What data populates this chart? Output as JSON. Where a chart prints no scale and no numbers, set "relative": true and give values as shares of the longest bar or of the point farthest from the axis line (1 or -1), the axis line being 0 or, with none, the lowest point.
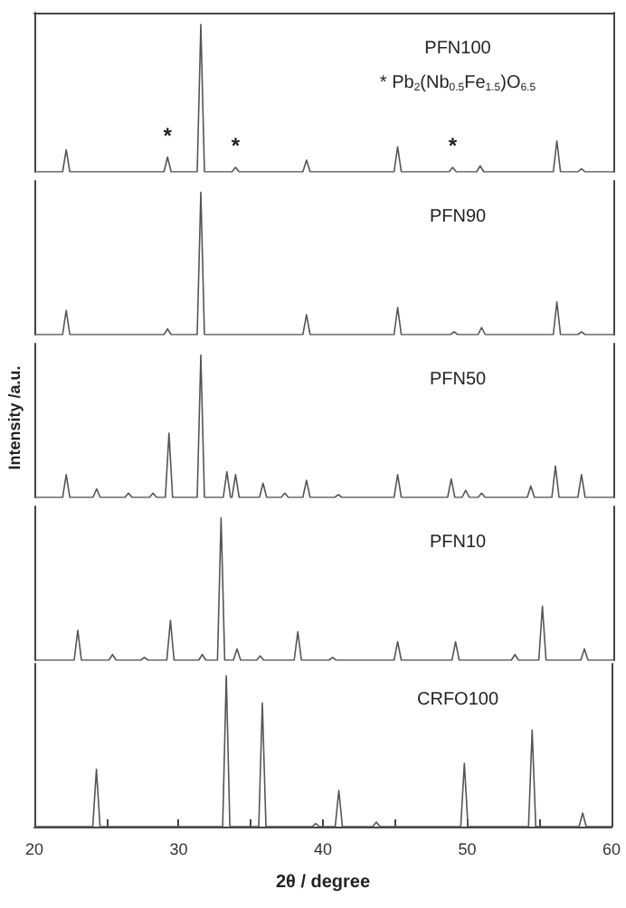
{
  "chart_data": [
    {
      "type": "line",
      "relative": true,
      "xlim": [
        20,
        60
      ],
      "tick_labels": false,
      "annotations": [
        "* Pb$_{2}$(Nb$_{0.5}$Fe$_{1.5}$)O$_{6.5}$",
        {
          "text": "*",
          "x": 29.2,
          "y": 0.1
        },
        {
          "text": "*",
          "x": 33.9,
          "y": 0.03
        },
        {
          "text": "*",
          "x": 48.9,
          "y": 0.03
        }
      ],
      "series": [
        {
          "name": "PFN100",
          "color": "#555555",
          "x": [
            20,
            21.95,
            22.2,
            22.45,
            28.95,
            29.2,
            29.45,
            31.25,
            31.5,
            31.75,
            33.65,
            33.9,
            34.15,
            38.55,
            38.8,
            39.05,
            44.85,
            45.1,
            45.35,
            48.65,
            48.9,
            49.15,
            50.55,
            50.8,
            51.05,
            55.85,
            56.1,
            56.35,
            57.55,
            57.8,
            58.05,
            60
          ],
          "values": [
            0,
            0,
            0.15,
            0,
            0,
            0.1,
            0,
            0,
            1,
            0,
            0,
            0.03,
            0,
            0,
            0.08,
            0,
            0,
            0.17,
            0,
            0,
            0.03,
            0,
            0,
            0.04,
            0,
            0,
            0.21,
            0,
            0,
            0.02,
            0,
            0
          ]
        }
      ]
    },
    {
      "type": "line",
      "relative": true,
      "xlim": [
        20,
        60
      ],
      "tick_labels": false,
      "series": [
        {
          "name": "PFN90",
          "color": "#555555",
          "x": [
            20,
            21.95,
            22.2,
            22.45,
            28.95,
            29.2,
            29.45,
            31.25,
            31.5,
            31.75,
            38.55,
            38.8,
            39.05,
            44.85,
            45.1,
            45.35,
            48.75,
            49,
            49.25,
            50.65,
            50.9,
            51.15,
            55.85,
            56.1,
            56.35,
            57.55,
            57.8,
            58.05,
            60
          ],
          "values": [
            0,
            0,
            0.17,
            0,
            0,
            0.04,
            0,
            0,
            1,
            0,
            0,
            0.14,
            0,
            0,
            0.19,
            0,
            0,
            0.02,
            0,
            0,
            0.05,
            0,
            0,
            0.23,
            0,
            0,
            0.02,
            0,
            0
          ]
        }
      ]
    },
    {
      "type": "line",
      "relative": true,
      "xlim": [
        20,
        60
      ],
      "tick_labels": false,
      "ylabel": "Intensity /a.u.",
      "series": [
        {
          "name": "PFN50",
          "color": "#555555",
          "x": [
            20,
            21.95,
            22.2,
            22.45,
            24.05,
            24.3,
            24.55,
            26.25,
            26.5,
            26.75,
            27.95,
            28.2,
            28.45,
            29.05,
            29.3,
            29.55,
            31.25,
            31.5,
            31.75,
            33.05,
            33.3,
            33.55,
            33.65,
            33.9,
            34.15,
            35.55,
            35.8,
            36.05,
            37.05,
            37.3,
            37.55,
            38.55,
            38.8,
            39.05,
            40.75,
            41,
            41.25,
            44.85,
            45.1,
            45.35,
            48.55,
            48.8,
            49.05,
            49.55,
            49.8,
            50.05,
            50.65,
            50.9,
            51.15,
            54.05,
            54.3,
            54.55,
            55.75,
            56,
            56.25,
            57.55,
            57.8,
            58.05,
            60
          ],
          "values": [
            0,
            0,
            0.16,
            0,
            0,
            0.06,
            0,
            0,
            0.03,
            0,
            0,
            0.03,
            0,
            0,
            0.45,
            0,
            0,
            1,
            0,
            0,
            0.18,
            0,
            0,
            0.16,
            0,
            0,
            0.1,
            0,
            0,
            0.03,
            0,
            0,
            0.12,
            0,
            0,
            0.02,
            0,
            0,
            0.16,
            0,
            0,
            0.13,
            0,
            0,
            0.05,
            0,
            0,
            0.03,
            0,
            0,
            0.08,
            0,
            0,
            0.22,
            0,
            0,
            0.16,
            0,
            0
          ]
        }
      ]
    },
    {
      "type": "line",
      "relative": true,
      "xlim": [
        20,
        60
      ],
      "tick_labels": false,
      "series": [
        {
          "name": "PFN10",
          "color": "#555555",
          "x": [
            20,
            22.75,
            23,
            23.25,
            25.15,
            25.4,
            25.65,
            27.35,
            27.6,
            27.85,
            29.15,
            29.4,
            29.65,
            31.35,
            31.6,
            31.85,
            32.65,
            32.9,
            33.15,
            33.75,
            34,
            34.25,
            35.35,
            35.6,
            35.85,
            37.95,
            38.2,
            38.45,
            40.35,
            40.6,
            40.85,
            44.85,
            45.1,
            45.35,
            48.85,
            49.1,
            49.35,
            52.95,
            53.2,
            53.45,
            54.85,
            55.1,
            55.35,
            57.75,
            58,
            58.25,
            60
          ],
          "values": [
            0,
            0,
            0.21,
            0,
            0,
            0.04,
            0,
            0,
            0.02,
            0,
            0,
            0.28,
            0,
            0,
            0.04,
            0,
            0,
            1,
            0,
            0,
            0.08,
            0,
            0,
            0.03,
            0,
            0,
            0.2,
            0,
            0,
            0.02,
            0,
            0,
            0.13,
            0,
            0,
            0.13,
            0,
            0,
            0.04,
            0,
            0,
            0.38,
            0,
            0,
            0.08,
            0,
            0
          ]
        }
      ]
    },
    {
      "type": "line",
      "relative": true,
      "xlim": [
        20,
        60
      ],
      "xticks": [
        20,
        {
          "value": 25,
          "label": null
        },
        30,
        {
          "value": 35,
          "label": null
        },
        40,
        {
          "value": 45,
          "label": null
        },
        50,
        {
          "value": 55,
          "label": null
        },
        60
      ],
      "tick_labels": "x",
      "xlabel": "2θ / degree",
      "series": [
        {
          "name": "CRFO100",
          "color": "#555555",
          "x": [
            20,
            24.05,
            24.3,
            24.55,
            33.05,
            33.3,
            33.55,
            35.55,
            35.8,
            36.05,
            39.25,
            39.5,
            39.75,
            40.85,
            41.1,
            41.35,
            43.45,
            43.7,
            43.95,
            49.55,
            49.8,
            50.05,
            54.25,
            54.5,
            54.75,
            57.75,
            58,
            58.25,
            60
          ],
          "values": [
            0,
            0,
            0.38,
            0,
            0,
            1,
            0,
            0,
            0.82,
            0,
            0,
            0.02,
            0,
            0,
            0.24,
            0,
            0,
            0.03,
            0,
            0,
            0.42,
            0,
            0,
            0.64,
            0,
            0,
            0.09,
            0,
            0
          ]
        }
      ]
    }
  ]
}
